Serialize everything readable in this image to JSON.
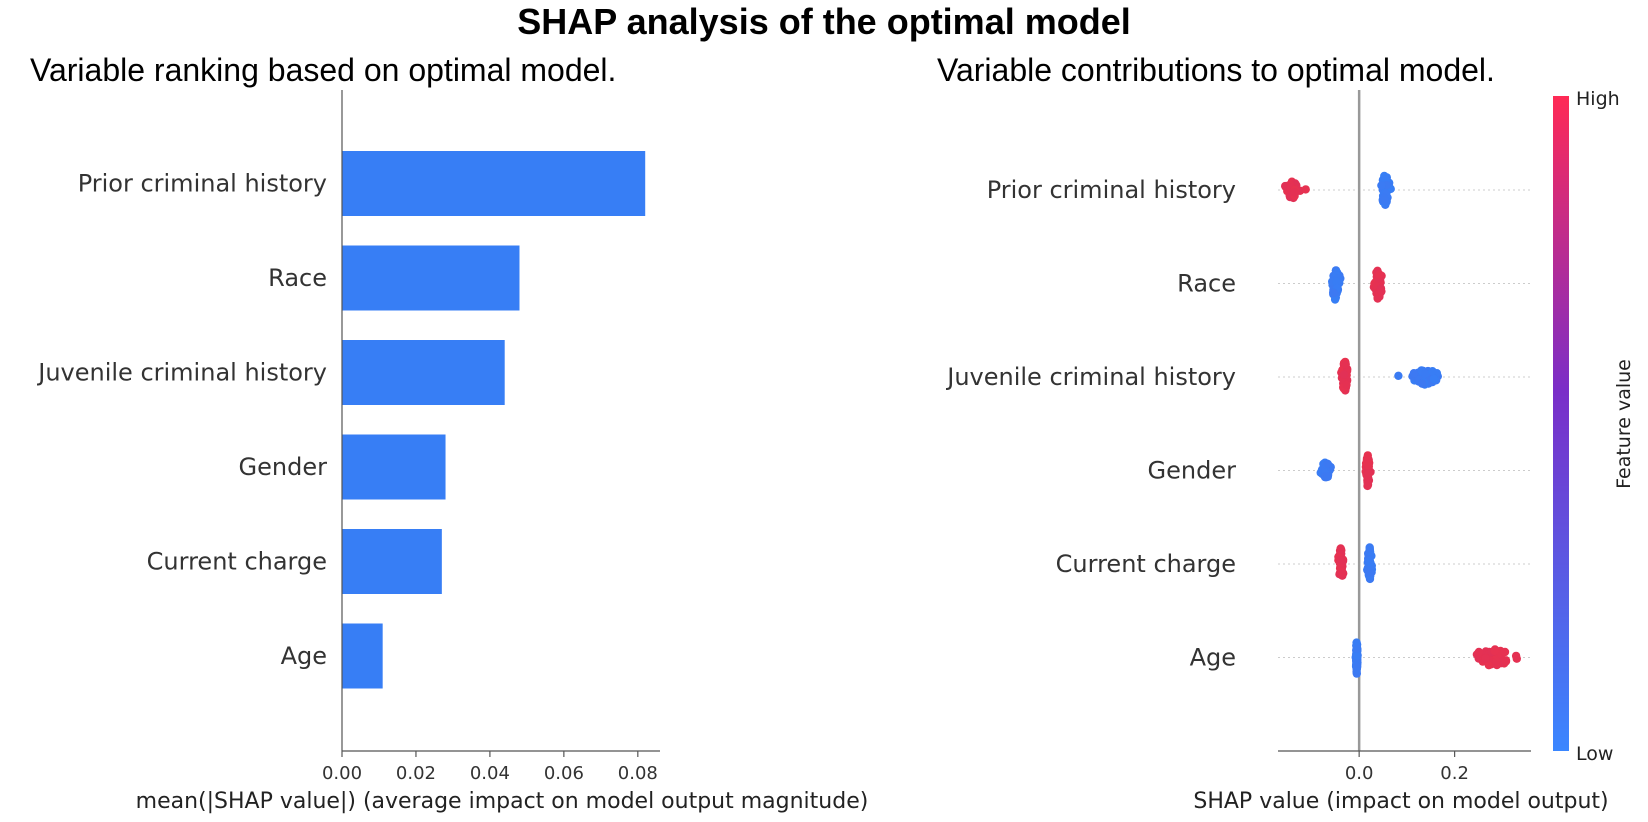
{
  "title": "SHAP analysis of the optimal model",
  "colors": {
    "blue": "#377ef5",
    "red": "#e8324f",
    "purple": "#8b2bbd",
    "axis": "#555555"
  },
  "chart_data": [
    {
      "type": "bar",
      "subtitle": "Variable ranking based on optimal model.",
      "categories": [
        "Prior criminal history",
        "Race",
        "Juvenile criminal history",
        "Gender",
        "Current charge",
        "Age"
      ],
      "values": [
        0.082,
        0.048,
        0.044,
        0.028,
        0.027,
        0.011
      ],
      "xlabel": "mean(|SHAP value|) (average impact on model output magnitude)",
      "xticks": [
        0.0,
        0.02,
        0.04,
        0.06,
        0.08
      ],
      "xtick_labels": [
        "0.00",
        "0.02",
        "0.04",
        "0.06",
        "0.08"
      ],
      "xlim": [
        0,
        0.086
      ],
      "orientation": "horizontal"
    },
    {
      "type": "scatter",
      "subtitle": "Variable contributions to optimal model.",
      "categories": [
        "Prior criminal history",
        "Race",
        "Juvenile criminal history",
        "Gender",
        "Current charge",
        "Age"
      ],
      "xlabel": "SHAP value (impact on model output)",
      "xticks": [
        0.0,
        0.2
      ],
      "xtick_labels": [
        "0.0",
        "0.2"
      ],
      "xlim": [
        -0.17,
        0.36
      ],
      "colorbar": {
        "title": "Feature value",
        "high_label": "High",
        "low_label": "Low"
      },
      "clusters": [
        {
          "feature": "Prior criminal history",
          "level": "high",
          "center": -0.14,
          "spread": 0.016
        },
        {
          "feature": "Prior criminal history",
          "level": "low",
          "center": 0.055,
          "spread": 0.01
        },
        {
          "feature": "Race",
          "level": "low",
          "center": -0.05,
          "spread": 0.01
        },
        {
          "feature": "Race",
          "level": "high",
          "center": 0.04,
          "spread": 0.009
        },
        {
          "feature": "Juvenile criminal history",
          "level": "high",
          "center": -0.03,
          "spread": 0.006
        },
        {
          "feature": "Juvenile criminal history",
          "level": "low",
          "center": 0.14,
          "spread": 0.03
        },
        {
          "feature": "Gender",
          "level": "low",
          "center": -0.07,
          "spread": 0.012
        },
        {
          "feature": "Gender",
          "level": "high",
          "center": 0.018,
          "spread": 0.004
        },
        {
          "feature": "Current charge",
          "level": "high",
          "center": -0.038,
          "spread": 0.007
        },
        {
          "feature": "Current charge",
          "level": "low",
          "center": 0.022,
          "spread": 0.005
        },
        {
          "feature": "Age",
          "level": "low",
          "center": -0.005,
          "spread": 0.002
        },
        {
          "feature": "Age",
          "level": "high",
          "center": 0.28,
          "spread": 0.05
        }
      ]
    }
  ]
}
